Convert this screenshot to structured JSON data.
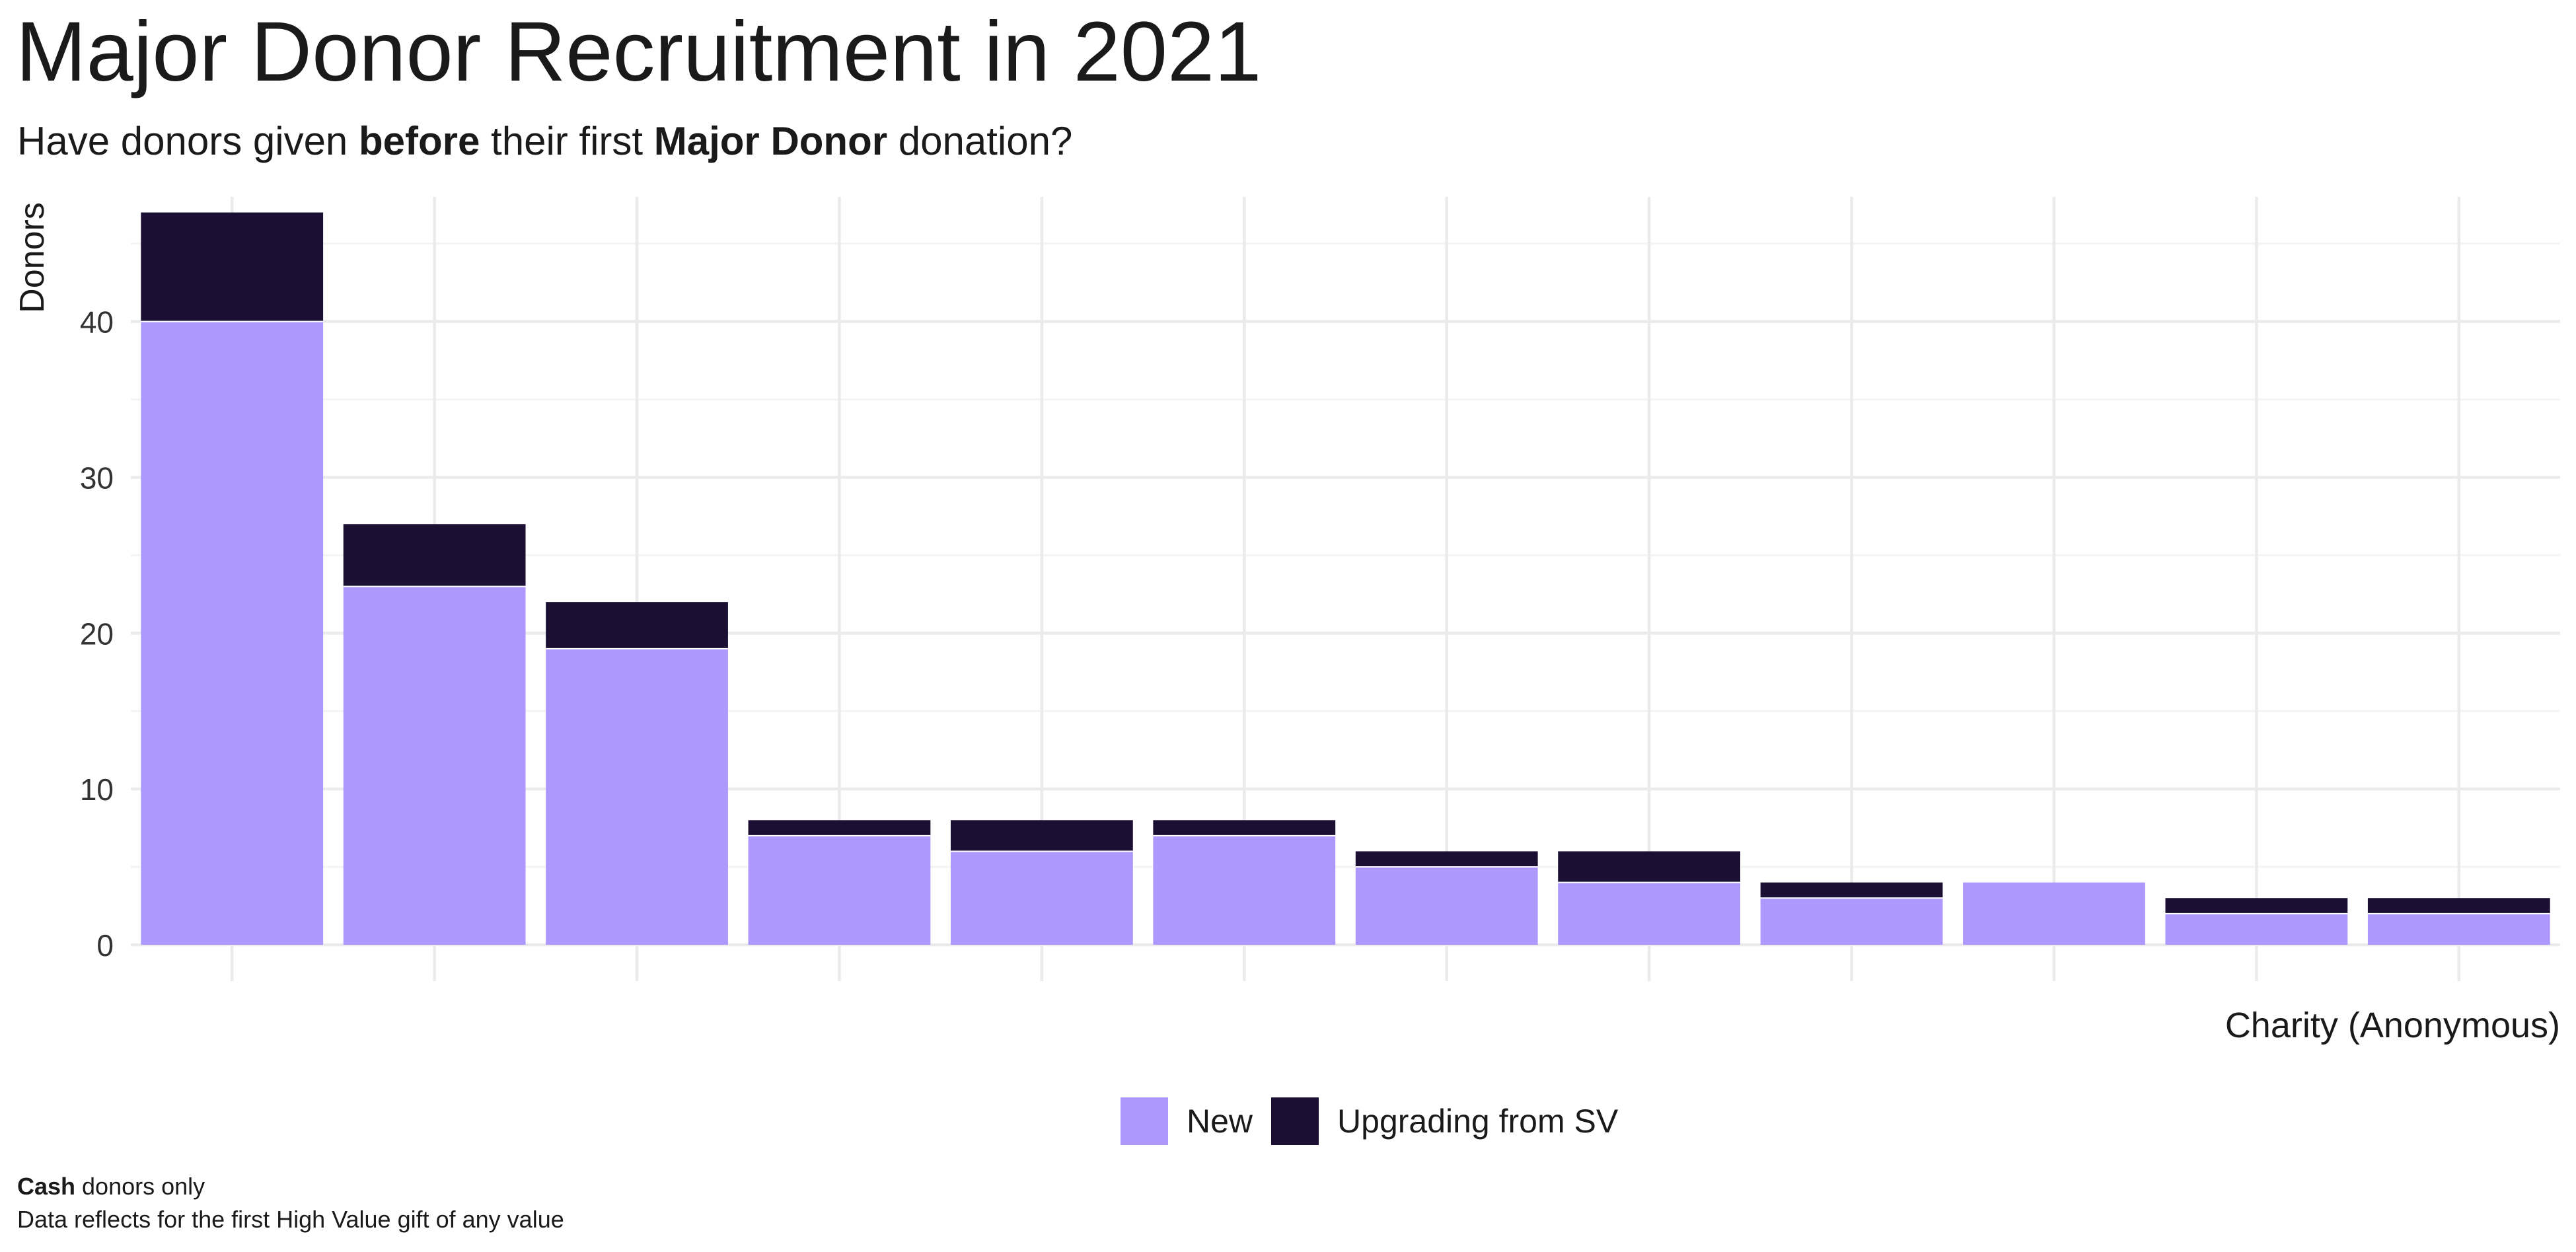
{
  "colors": {
    "new": "#ad98fd",
    "upgrading": "#1b1033",
    "grid_major": "#ebebeb",
    "grid_minor": "#f4f4f4",
    "text": "#1a1a1a",
    "axis_text": "#333333"
  },
  "chart_data": {
    "type": "bar",
    "stacked": true,
    "title": "Major Donor Recruitment in 2021",
    "subtitle": {
      "part1": "Have donors given ",
      "bold1": "before",
      "part2": " their first ",
      "bold2": "Major Donor",
      "part3": " donation?"
    },
    "xlabel": "Charity (Anonymous)",
    "ylabel": "Donors",
    "ylim": [
      0,
      48
    ],
    "yticks": [
      0,
      10,
      20,
      30,
      40
    ],
    "categories": [
      "",
      "",
      "",
      "",
      "",
      "",
      "",
      "",
      "",
      "",
      "",
      ""
    ],
    "series": [
      {
        "name": "New",
        "values": [
          40,
          23,
          19,
          7,
          6,
          7,
          5,
          4,
          3,
          4,
          2,
          2
        ]
      },
      {
        "name": "Upgrading from SV",
        "values": [
          7,
          4,
          3,
          1,
          2,
          1,
          1,
          2,
          1,
          0,
          1,
          1
        ]
      }
    ],
    "grid": true,
    "legend_position": "bottom"
  },
  "legend": {
    "new_label": "New",
    "upgrading_label": "Upgrading from SV"
  },
  "caption": {
    "line1_bold": "Cash",
    "line1_rest": " donors only",
    "line2": "Data reflects for the first High Value gift of any value"
  }
}
